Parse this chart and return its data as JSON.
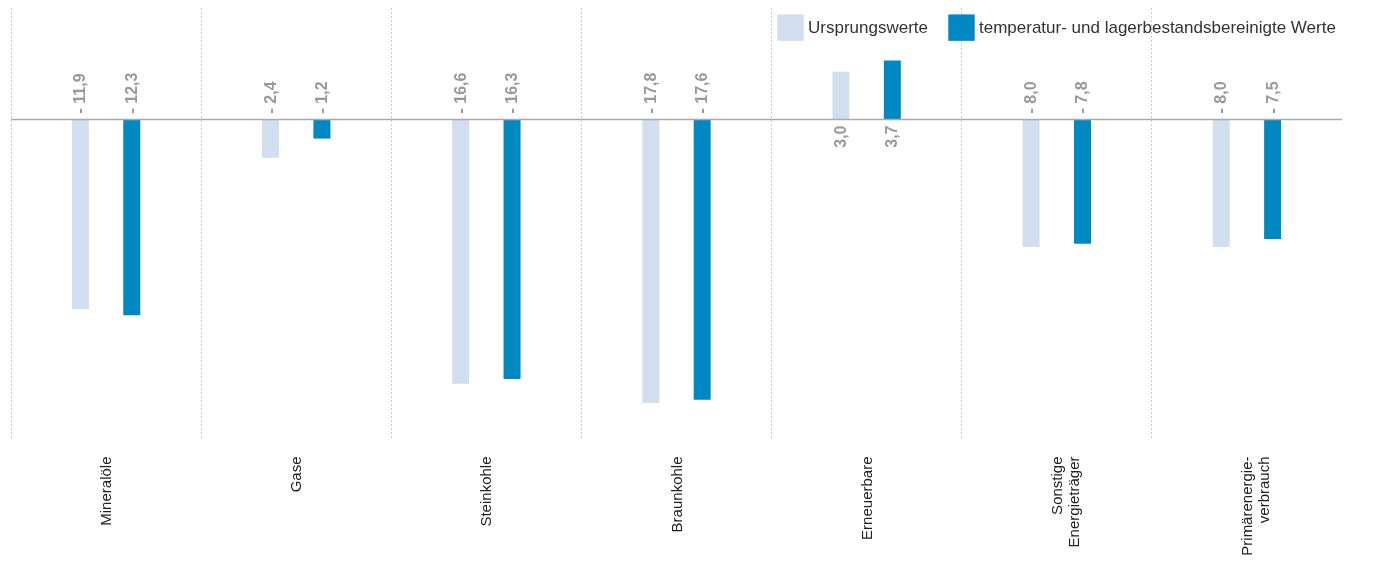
{
  "chart_data": {
    "type": "bar",
    "categories": [
      "Mineralöle",
      "Gase",
      "Steinkohle",
      "Braunkohle",
      "Erneuerbare",
      "Sonstige\nEnergieträger",
      "Primärenergie-\nverbrauch"
    ],
    "series": [
      {
        "name": "Ursprungswerte",
        "color": "#d0deef",
        "values": [
          -11.9,
          -2.4,
          -16.6,
          -17.8,
          3.0,
          -8.0,
          -8.0
        ],
        "value_labels": [
          "- 11,9",
          "- 2,4",
          "- 16,6",
          "- 17,8",
          "3,0",
          "- 8,0",
          "- 8,0"
        ]
      },
      {
        "name": "temperatur- und lagerbestandsbereinigte Werte",
        "color": "#0088c3",
        "values": [
          -12.3,
          -1.2,
          -16.3,
          -17.6,
          3.7,
          -7.8,
          -7.5
        ],
        "value_labels": [
          "- 12,3",
          "- 1,2",
          "- 16,3",
          "- 17,6",
          "3,7",
          "- 7,8",
          "- 7,5"
        ]
      }
    ],
    "ylim": [
      -20,
      7
    ],
    "grid": "x",
    "legend": "top right",
    "ref_lines": [
      {
        "axis": "y",
        "value": 0
      }
    ]
  }
}
